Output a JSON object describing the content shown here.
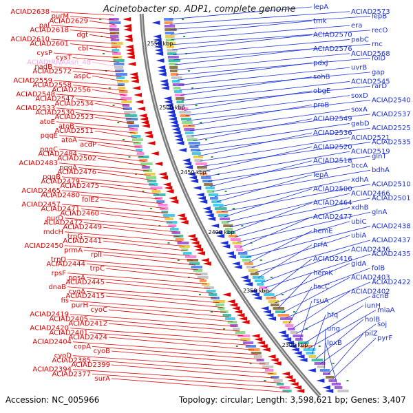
{
  "title": "Acinetobacter sp. ADP1, complete genome",
  "accession": "Accession: NC_005966",
  "summary": "Topology: circular; Length: 3,598,621 bp; Genes: 3,407",
  "colors": {
    "left_strand": "#e00000",
    "right_strand": "#1a2fd8",
    "trna": "#f3a6e6",
    "backbone": "#808080"
  },
  "ticks": [
    "2550 kbp",
    "2500 kbp",
    "2450 kbp",
    "2400 kbp",
    "2350 kbp",
    "2300 kbp"
  ],
  "left_labels": [
    "ACIAD2638",
    "purM",
    "ACIAD2629",
    "pal",
    "ACIAD2618",
    "dgt",
    "ACIAD2610",
    "ACIAD2601",
    "cbl",
    "cysP",
    "cysT",
    "ACIADtRNAAsn_48",
    "nadB",
    "ACIAD2572",
    "aspC",
    "ACIAD2559",
    "ACIAD2558",
    "ACIAD2556",
    "ACIAD2548",
    "ACIAD2547",
    "ACIAD2534",
    "ACIAD2533",
    "ACIAD2530",
    "ACIAD2523",
    "atoE",
    "atoB",
    "ACIAD2511",
    "pqqE",
    "atoA",
    "acdP",
    "pqqC",
    "ACIAD2484",
    "ACIAD2502",
    "ACIAD2483",
    "pqqA",
    "ACIAD2476",
    "pqqB",
    "ACIAD2479",
    "ACIAD2475",
    "ACIAD2465",
    "ACIAD2480",
    "folE2",
    "ACIAD2457",
    "ACIAD2471",
    "ACIAD2460",
    "purD",
    "ACIAD2472",
    "ACIAD2449",
    "mdcH",
    "trpG",
    "ACIAD2441",
    "ACIAD2450",
    "prmA",
    "rplI",
    "trpD",
    "ACIAD2444",
    "trpC",
    "rpsF",
    "ppsA",
    "ACIAD2445",
    "dnaB",
    "cyoA",
    "ACIAD2415",
    "fis",
    "purH",
    "cyoC",
    "ACIAD2419",
    "ACIAD2405",
    "ACIAD2412",
    "ACIAD2420",
    "ACIAD2401",
    "ACIAD2424",
    "ACIAD2404",
    "copA",
    "cyoB",
    "cyoD",
    "ACIAD2385",
    "ACIAD2399",
    "ACIAD2394",
    "ACIAD2377",
    "surA"
  ],
  "right_labels": [
    "lepA",
    "ACIAD2573",
    "lepB",
    "tmk",
    "era",
    "recO",
    "ACIAD2570",
    "pabC",
    "rnc",
    "ACIAD2576",
    "ACIAD2568",
    "folD",
    "pdxJ",
    "uvrB",
    "gap",
    "sohB",
    "ACIAD2545",
    "rarD",
    "obgE",
    "soxD",
    "ACIAD2540",
    "proB",
    "soxA",
    "ACIAD2537",
    "ACIAD2549",
    "gabD",
    "ACIAD2525",
    "ACIAD2536",
    "ACIAD2521",
    "ACIAD2535",
    "ACIAD2520",
    "ACIAD2519",
    "glnT",
    "ACIAD2518",
    "bccA",
    "bdhA",
    "lepA",
    "xdhA",
    "ACIAD2510",
    "ACIAD2500",
    "ACIAD2466",
    "ACIAD2501",
    "ACIAD2464",
    "xdhB",
    "glnA",
    "ACIAD2477",
    "ubiC",
    "ACIAD2438",
    "hemE",
    "ubiA",
    "ACIAD2437",
    "prfA",
    "ACIAD2436",
    "ACIAD2435",
    "ACIAD2416",
    "gidA",
    "folB",
    "hemK",
    "ACIAD2403",
    "ACIAD2422",
    "hscC",
    "ACIAD2402",
    "acnB",
    "rsuA",
    "iunH",
    "miaA",
    "hfq",
    "holB",
    "soj",
    "ung",
    "pilZ",
    "pyrF",
    "lpxB"
  ]
}
